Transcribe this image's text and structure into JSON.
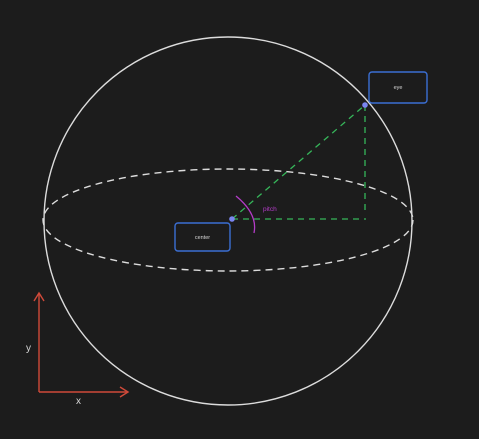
{
  "diagram": {
    "nodes": {
      "center": {
        "label": "center"
      },
      "eye": {
        "label": "eye"
      }
    },
    "angle_label": "pitch",
    "axes": {
      "x_label": "x",
      "y_label": "y"
    }
  },
  "colors": {
    "background": "#1c1c1c",
    "sphere": "#dcdcdc",
    "node_border": "#3b6fd4",
    "node_point": "#7a86f0",
    "guide_line": "#36b65a",
    "angle": "#b43cc8",
    "axis": "#d04a3a",
    "text": "#d6d6d6"
  }
}
